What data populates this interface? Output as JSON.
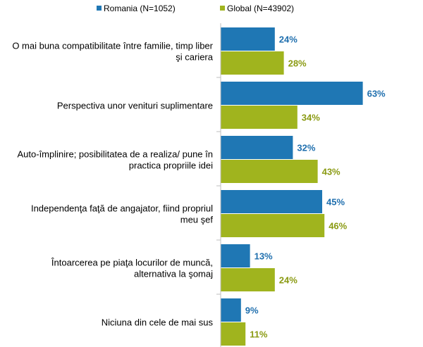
{
  "chart_data": {
    "type": "bar",
    "orientation": "horizontal",
    "title": "",
    "xlabel": "",
    "ylabel": "",
    "xlim": [
      0,
      100
    ],
    "legend_position": "top",
    "categories": [
      [
        "O mai buna compatibilitate între familie, timp liber",
        "şi cariera"
      ],
      [
        "Perspectiva unor venituri suplimentare"
      ],
      [
        "Auto-împlinire; posibilitatea de a realiza/ pune în",
        "practica  propriile idei"
      ],
      [
        "Independenţa faţă de angajator, fiind propriul",
        "meu şef"
      ],
      [
        "Întoarcerea pe piaţa locurilor de muncă,",
        "alternativa la şomaj"
      ],
      [
        "Niciuna din cele de mai sus"
      ]
    ],
    "series": [
      {
        "name": "Romania (N=1052)",
        "color": "#1f77b4",
        "label_color": "#1f6fae",
        "values": [
          24,
          63,
          32,
          45,
          13,
          9
        ],
        "labels": [
          "24%",
          "63%",
          "32%",
          "45%",
          "13%",
          "9%"
        ]
      },
      {
        "name": "Global (N=43902)",
        "color": "#a0b41e",
        "label_color": "#8a9a12",
        "values": [
          28,
          34,
          43,
          46,
          24,
          11
        ],
        "labels": [
          "28%",
          "34%",
          "43%",
          "46%",
          "24%",
          "11%"
        ]
      }
    ]
  }
}
